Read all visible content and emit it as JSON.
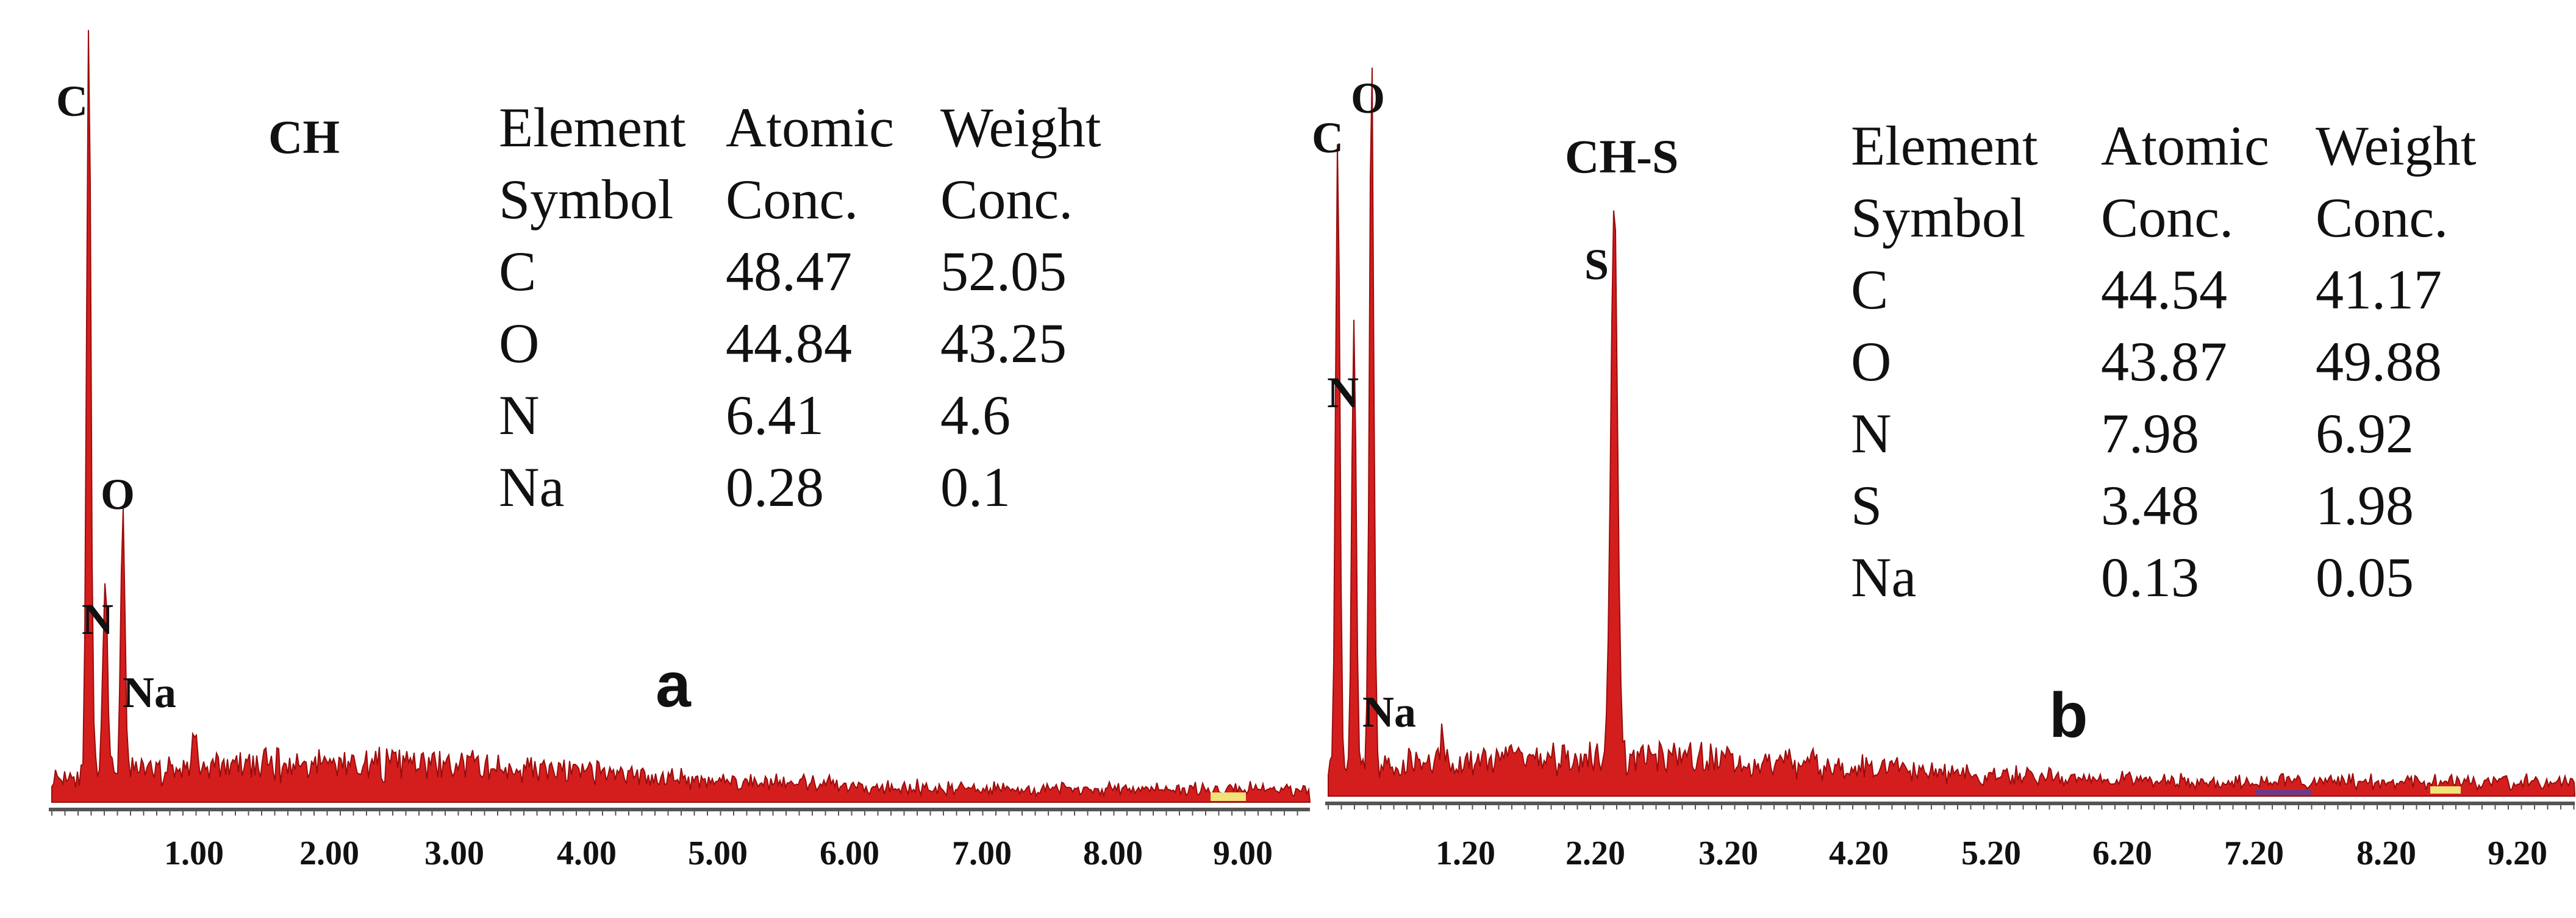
{
  "chart_data": [
    {
      "type": "eds_spectrum",
      "panel_label": "a",
      "sample": "CH",
      "x_ticks": [
        "1.00",
        "2.00",
        "3.00",
        "4.00",
        "5.00",
        "6.00",
        "7.00",
        "8.00",
        "9.00"
      ],
      "xlim": [
        0.0,
        9.2
      ],
      "xunit": "keV",
      "peaks": [
        {
          "label": "C",
          "energy": 0.27,
          "intensity": 1.0
        },
        {
          "label": "N",
          "energy": 0.39,
          "intensity": 0.27
        },
        {
          "label": "O",
          "energy": 0.52,
          "intensity": 0.36
        },
        {
          "label": "Na",
          "energy": 1.04,
          "intensity": 0.05
        }
      ],
      "table": {
        "headers": [
          [
            "Element",
            "Symbol"
          ],
          [
            "Atomic",
            "Conc."
          ],
          [
            "Weight",
            "Conc."
          ]
        ],
        "rows": [
          [
            "C",
            "48.47",
            "52.05"
          ],
          [
            "O",
            "44.84",
            "43.25"
          ],
          [
            "N",
            "6.41",
            "4.6"
          ],
          [
            "Na",
            "0.28",
            "0.1"
          ]
        ]
      }
    },
    {
      "type": "eds_spectrum",
      "panel_label": "b",
      "sample": "CH-S",
      "x_ticks": [
        "1.20",
        "2.20",
        "3.20",
        "4.20",
        "5.20",
        "6.20",
        "7.20",
        "8.20",
        "9.20"
      ],
      "xlim": [
        0.2,
        9.4
      ],
      "xunit": "keV",
      "peaks": [
        {
          "label": "C",
          "energy": 0.27,
          "intensity": 0.87
        },
        {
          "label": "N",
          "energy": 0.39,
          "intensity": 0.62
        },
        {
          "label": "O",
          "energy": 0.52,
          "intensity": 0.96
        },
        {
          "label": "Na",
          "energy": 1.04,
          "intensity": 0.04
        },
        {
          "label": "S",
          "energy": 2.31,
          "intensity": 0.77
        }
      ],
      "table": {
        "headers": [
          [
            "Element",
            "Symbol"
          ],
          [
            "Atomic",
            "Conc."
          ],
          [
            "Weight",
            "Conc."
          ]
        ],
        "rows": [
          [
            "C",
            "44.54",
            "41.17"
          ],
          [
            "O",
            "43.87",
            "49.88"
          ],
          [
            "N",
            "7.98",
            "6.92"
          ],
          [
            "S",
            "3.48",
            "1.98"
          ],
          [
            "Na",
            "0.13",
            "0.05"
          ]
        ]
      }
    }
  ],
  "colors": {
    "spectrum": "#d41e1e",
    "spectrum_dark": "#9a0c0c",
    "axis": "#555555",
    "highlight": "#f2e27a",
    "purple": "#6a3a8a"
  }
}
